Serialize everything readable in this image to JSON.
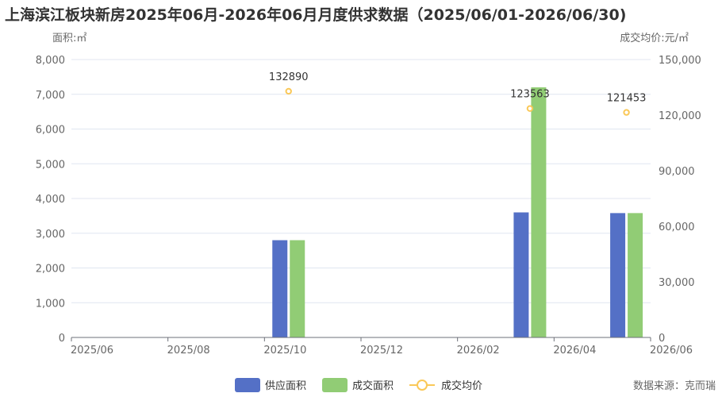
{
  "chart_data": {
    "type": "bar",
    "title": "上海滨江板块新房2025年06月-2026年06月月度供求数据（2025/06/01-2026/06/30)",
    "y_left_label": "面积:㎡",
    "y_right_label": "成交均价:元/㎡",
    "x_ticks": [
      "2025/06",
      "2025/08",
      "2025/10",
      "2025/12",
      "2026/02",
      "2026/04",
      "2026/06"
    ],
    "y_left_ticks": [
      "0",
      "1,000",
      "2,000",
      "3,000",
      "4,000",
      "5,000",
      "6,000",
      "7,000",
      "8,000"
    ],
    "y_right_ticks": [
      "0",
      "30,000",
      "60,000",
      "90,000",
      "120,000",
      "150,000"
    ],
    "y_left_lim": [
      0,
      8000
    ],
    "y_right_lim": [
      0,
      150000
    ],
    "categories": [
      "2025/06",
      "2025/07",
      "2025/08",
      "2025/09",
      "2025/10",
      "2025/11",
      "2025/12",
      "2026/01",
      "2026/02",
      "2026/03",
      "2026/04",
      "2026/05",
      "2026/06"
    ],
    "series": [
      {
        "name": "供应面积",
        "type": "bar",
        "axis": "left",
        "color": "#5470c6",
        "values": [
          null,
          null,
          null,
          null,
          2800,
          null,
          null,
          null,
          null,
          3600,
          null,
          3580,
          null
        ]
      },
      {
        "name": "成交面积",
        "type": "bar",
        "axis": "left",
        "color": "#91cc75",
        "values": [
          null,
          null,
          null,
          null,
          2800,
          null,
          null,
          null,
          null,
          7200,
          null,
          3580,
          null
        ]
      },
      {
        "name": "成交均价",
        "type": "scatter",
        "axis": "right",
        "color": "#fac858",
        "values": [
          null,
          null,
          null,
          null,
          132890,
          null,
          null,
          null,
          null,
          123563,
          null,
          121453,
          null
        ],
        "labels": [
          "",
          "",
          "",
          "",
          "132890",
          "",
          "",
          "",
          "",
          "123563",
          "",
          "121453",
          ""
        ]
      }
    ],
    "legend_position": "bottom-center",
    "grid": true,
    "source": "数据来源：克而瑞"
  }
}
